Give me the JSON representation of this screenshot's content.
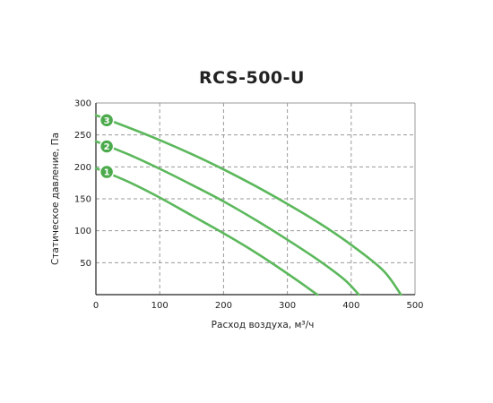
{
  "chart_data": {
    "type": "line",
    "title": "RCS-500-U",
    "xlabel": "Расход воздуха, м³/ч",
    "ylabel": "Статическое давление, Па",
    "xlim": [
      0,
      500
    ],
    "ylim": [
      0,
      300
    ],
    "x_ticks": [
      0,
      100,
      200,
      300,
      400,
      500
    ],
    "y_ticks": [
      50,
      100,
      150,
      200,
      250,
      300
    ],
    "x_tick_labels": [
      "0",
      "100",
      "200",
      "300",
      "400",
      "500"
    ],
    "y_tick_labels": [
      "50",
      "100",
      "150",
      "200",
      "250",
      "300"
    ],
    "grid": true,
    "line_color": "#5cb85c",
    "marker_color": "#4caa4c",
    "series": [
      {
        "marker": "1",
        "marker_at": [
          17,
          192
        ],
        "x": [
          0,
          50,
          100,
          150,
          200,
          250,
          300,
          330,
          347
        ],
        "y": [
          198,
          177,
          152,
          124,
          96,
          66,
          33,
          12,
          0
        ]
      },
      {
        "marker": "2",
        "marker_at": [
          17,
          232
        ],
        "x": [
          0,
          50,
          100,
          150,
          200,
          250,
          300,
          350,
          390,
          412
        ],
        "y": [
          240,
          220,
          197,
          172,
          146,
          117,
          86,
          53,
          23,
          0
        ]
      },
      {
        "marker": "3",
        "marker_at": [
          17,
          273
        ],
        "x": [
          0,
          50,
          100,
          150,
          200,
          250,
          300,
          350,
          400,
          450,
          478
        ],
        "y": [
          281,
          262,
          242,
          220,
          196,
          170,
          142,
          112,
          78,
          38,
          0
        ]
      }
    ]
  }
}
